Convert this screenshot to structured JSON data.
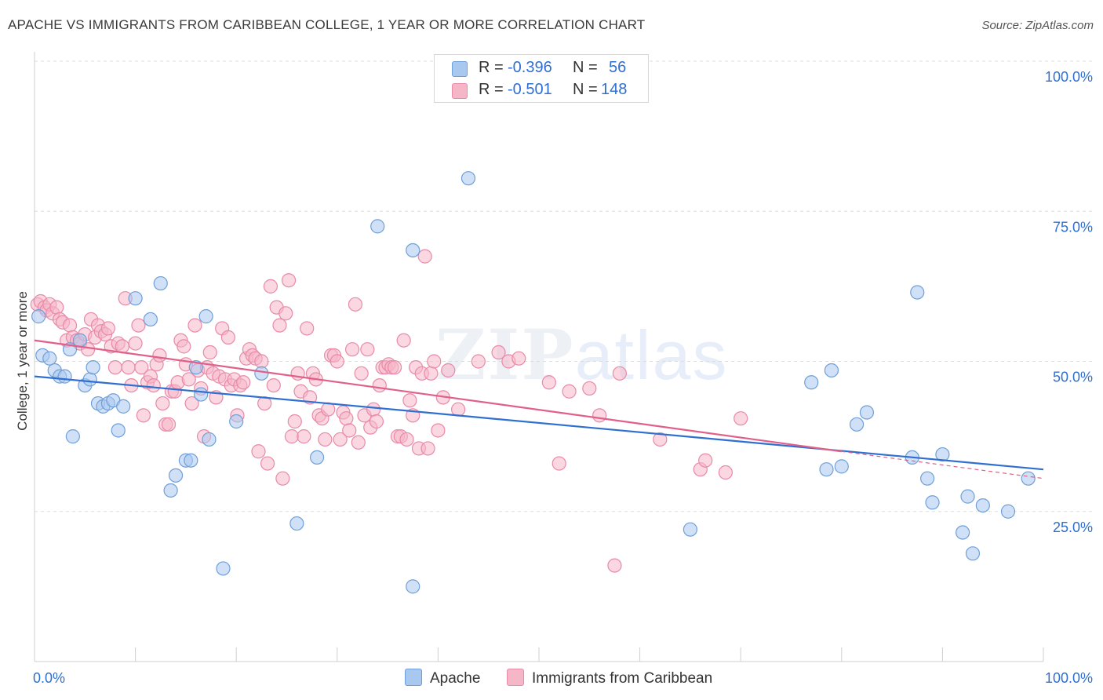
{
  "title": "APACHE VS IMMIGRANTS FROM CARIBBEAN COLLEGE, 1 YEAR OR MORE CORRELATION CHART",
  "source": "Source: ZipAtlas.com",
  "watermark": {
    "zip": "ZIP",
    "atlas": "atlas"
  },
  "legend": {
    "apache": {
      "r_label": "R =",
      "r_value": "-0.396",
      "n_label": "N =",
      "n_value": "56"
    },
    "caribbean": {
      "r_label": "R =",
      "r_value": "-0.501",
      "n_label": "N =",
      "n_value": "148"
    }
  },
  "colors": {
    "apache_fill": "#a9c8f0",
    "apache_stroke": "#6f9fd8",
    "apache_line": "#2f6fd1",
    "caribbean_fill": "#f5b6c8",
    "caribbean_stroke": "#e88aa8",
    "caribbean_line": "#e0608a",
    "axis_blue": "#2f6fd1",
    "grid": "#dddddd"
  },
  "chart_data": {
    "type": "scatter",
    "title": "APACHE VS IMMIGRANTS FROM CARIBBEAN COLLEGE, 1 YEAR OR MORE CORRELATION CHART",
    "xlabel": "",
    "ylabel": "College, 1 year or more",
    "xlim": [
      0,
      100
    ],
    "ylim": [
      0,
      100
    ],
    "x_tick_labels": [
      "0.0%",
      "100.0%"
    ],
    "y_tick_labels": [
      "25.0%",
      "50.0%",
      "75.0%",
      "100.0%"
    ],
    "y_ticks": [
      25,
      50,
      75,
      100
    ],
    "grid": true,
    "legend_position": "top-center",
    "series": [
      {
        "name": "Apache",
        "trend": [
          [
            0,
            47.5
          ],
          [
            100,
            32
          ]
        ],
        "points": [
          [
            0.4,
            57.5
          ],
          [
            0.8,
            51
          ],
          [
            1.5,
            50.5
          ],
          [
            2.0,
            48.5
          ],
          [
            2.5,
            47.5
          ],
          [
            3.0,
            47.5
          ],
          [
            3.5,
            52
          ],
          [
            3.8,
            37.5
          ],
          [
            4.5,
            53.5
          ],
          [
            5.0,
            46
          ],
          [
            5.5,
            47
          ],
          [
            5.8,
            49
          ],
          [
            6.3,
            43
          ],
          [
            6.8,
            42.5
          ],
          [
            7.3,
            43
          ],
          [
            7.8,
            43.5
          ],
          [
            8.3,
            38.5
          ],
          [
            8.8,
            42.5
          ],
          [
            10.0,
            60.5
          ],
          [
            11.5,
            57
          ],
          [
            12.5,
            63
          ],
          [
            13.5,
            28.5
          ],
          [
            14.0,
            31
          ],
          [
            15.0,
            33.5
          ],
          [
            15.5,
            33.5
          ],
          [
            16.0,
            49
          ],
          [
            16.5,
            44.5
          ],
          [
            17.0,
            57.5
          ],
          [
            17.3,
            37
          ],
          [
            18.7,
            15.5
          ],
          [
            20.0,
            40
          ],
          [
            22.5,
            48
          ],
          [
            26.0,
            23
          ],
          [
            28.0,
            34
          ],
          [
            34.0,
            72.5
          ],
          [
            37.5,
            68.5
          ],
          [
            37.5,
            12.5
          ],
          [
            43.0,
            80.5
          ],
          [
            65.0,
            22
          ],
          [
            77.0,
            46.5
          ],
          [
            78.5,
            32
          ],
          [
            79.0,
            48.5
          ],
          [
            80.0,
            32.5
          ],
          [
            81.5,
            39.5
          ],
          [
            82.5,
            41.5
          ],
          [
            87.5,
            61.5
          ],
          [
            87.0,
            34
          ],
          [
            88.5,
            30.5
          ],
          [
            89.0,
            26.5
          ],
          [
            90.0,
            34.5
          ],
          [
            92.0,
            21.5
          ],
          [
            92.5,
            27.5
          ],
          [
            93.0,
            18
          ],
          [
            94.0,
            26
          ],
          [
            96.5,
            25
          ],
          [
            98.5,
            30.5
          ]
        ]
      },
      {
        "name": "Immigrants from Caribbean",
        "trend": [
          [
            0,
            53.5
          ],
          [
            80,
            35
          ],
          [
            100,
            30.5
          ]
        ],
        "points": [
          [
            0.3,
            59.5
          ],
          [
            0.6,
            60
          ],
          [
            1.0,
            59
          ],
          [
            1.2,
            58.5
          ],
          [
            1.5,
            59.5
          ],
          [
            1.8,
            58
          ],
          [
            2.2,
            59
          ],
          [
            2.5,
            57
          ],
          [
            2.8,
            56.5
          ],
          [
            3.2,
            53.5
          ],
          [
            3.5,
            56
          ],
          [
            3.8,
            54
          ],
          [
            4.2,
            53.5
          ],
          [
            4.5,
            53
          ],
          [
            5.0,
            54.5
          ],
          [
            5.3,
            52
          ],
          [
            5.6,
            57
          ],
          [
            6.0,
            54
          ],
          [
            6.3,
            56
          ],
          [
            6.6,
            55
          ],
          [
            7.0,
            54.5
          ],
          [
            7.3,
            55.5
          ],
          [
            7.6,
            52.5
          ],
          [
            8.0,
            49
          ],
          [
            8.3,
            53
          ],
          [
            8.7,
            52.5
          ],
          [
            9.0,
            60.5
          ],
          [
            9.3,
            49
          ],
          [
            9.6,
            46
          ],
          [
            10.0,
            53
          ],
          [
            10.3,
            56
          ],
          [
            10.6,
            49
          ],
          [
            10.8,
            41
          ],
          [
            11.2,
            46.5
          ],
          [
            11.5,
            47.5
          ],
          [
            11.8,
            46
          ],
          [
            12.1,
            49.5
          ],
          [
            12.4,
            51
          ],
          [
            12.7,
            43
          ],
          [
            13.0,
            39.5
          ],
          [
            13.3,
            39.5
          ],
          [
            13.6,
            45
          ],
          [
            13.9,
            45
          ],
          [
            14.2,
            46.5
          ],
          [
            14.5,
            53.5
          ],
          [
            14.8,
            52.5
          ],
          [
            15.0,
            49.5
          ],
          [
            15.3,
            47
          ],
          [
            15.6,
            43
          ],
          [
            15.9,
            56
          ],
          [
            16.2,
            48.5
          ],
          [
            16.5,
            45.5
          ],
          [
            16.8,
            37.5
          ],
          [
            17.1,
            49
          ],
          [
            17.4,
            51.5
          ],
          [
            17.7,
            48
          ],
          [
            18.0,
            44
          ],
          [
            18.3,
            47.5
          ],
          [
            18.6,
            55.5
          ],
          [
            18.9,
            47
          ],
          [
            19.2,
            54
          ],
          [
            19.5,
            46
          ],
          [
            19.8,
            47
          ],
          [
            20.1,
            41
          ],
          [
            20.4,
            46
          ],
          [
            20.7,
            46.5
          ],
          [
            21.0,
            50.5
          ],
          [
            21.3,
            52
          ],
          [
            21.6,
            51
          ],
          [
            21.9,
            50.5
          ],
          [
            22.2,
            35
          ],
          [
            22.5,
            50
          ],
          [
            22.8,
            43
          ],
          [
            23.1,
            33
          ],
          [
            23.4,
            62.5
          ],
          [
            23.7,
            46
          ],
          [
            24.0,
            59
          ],
          [
            24.3,
            56
          ],
          [
            24.6,
            30.5
          ],
          [
            24.9,
            58
          ],
          [
            25.2,
            63.5
          ],
          [
            25.5,
            37.5
          ],
          [
            25.8,
            40
          ],
          [
            26.1,
            48
          ],
          [
            26.4,
            45
          ],
          [
            26.7,
            37.5
          ],
          [
            27.0,
            55.5
          ],
          [
            27.3,
            44
          ],
          [
            27.6,
            48
          ],
          [
            27.9,
            47
          ],
          [
            28.2,
            41
          ],
          [
            28.5,
            40.5
          ],
          [
            28.8,
            37
          ],
          [
            29.1,
            42
          ],
          [
            29.4,
            51
          ],
          [
            29.7,
            51
          ],
          [
            30.0,
            50
          ],
          [
            30.3,
            37
          ],
          [
            30.6,
            41.5
          ],
          [
            30.9,
            40.5
          ],
          [
            31.2,
            38.5
          ],
          [
            31.5,
            52
          ],
          [
            31.8,
            59.5
          ],
          [
            32.1,
            36.5
          ],
          [
            32.4,
            48
          ],
          [
            32.7,
            41
          ],
          [
            33.0,
            52
          ],
          [
            33.3,
            39
          ],
          [
            33.6,
            42
          ],
          [
            33.9,
            40
          ],
          [
            34.2,
            46
          ],
          [
            34.5,
            49
          ],
          [
            34.8,
            49
          ],
          [
            35.1,
            49.5
          ],
          [
            35.4,
            49
          ],
          [
            35.7,
            49
          ],
          [
            36.0,
            37.5
          ],
          [
            36.3,
            37.5
          ],
          [
            36.6,
            53.5
          ],
          [
            36.9,
            37
          ],
          [
            37.2,
            43.5
          ],
          [
            37.5,
            41
          ],
          [
            37.8,
            49
          ],
          [
            38.1,
            35.5
          ],
          [
            38.4,
            48
          ],
          [
            38.7,
            67.5
          ],
          [
            39.0,
            35.5
          ],
          [
            39.3,
            48
          ],
          [
            39.6,
            50
          ],
          [
            40.0,
            38.5
          ],
          [
            40.5,
            44
          ],
          [
            41.0,
            48.5
          ],
          [
            42.0,
            42
          ],
          [
            44.0,
            50
          ],
          [
            46.0,
            51.5
          ],
          [
            47.0,
            50
          ],
          [
            48.0,
            50.5
          ],
          [
            51.0,
            46.5
          ],
          [
            52.0,
            33
          ],
          [
            53.0,
            45
          ],
          [
            55.0,
            45.5
          ],
          [
            56.0,
            41
          ],
          [
            57.5,
            16
          ],
          [
            58.0,
            48
          ],
          [
            62.0,
            37
          ],
          [
            66.0,
            32
          ],
          [
            66.5,
            33.5
          ],
          [
            68.5,
            31.5
          ],
          [
            70.0,
            40.5
          ]
        ]
      }
    ]
  }
}
